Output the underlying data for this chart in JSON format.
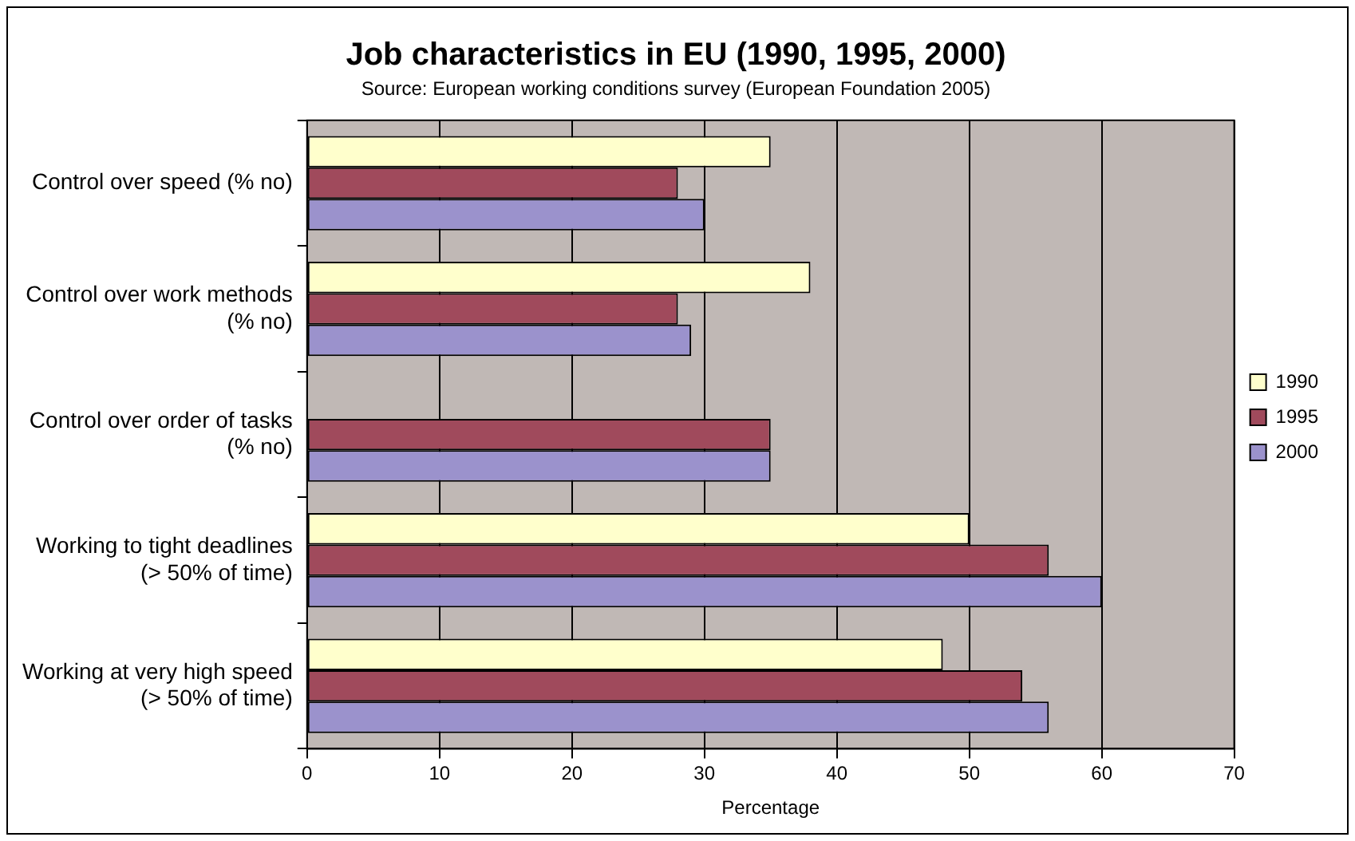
{
  "chart_data": {
    "type": "bar",
    "orientation": "horizontal",
    "title": "Job characteristics in EU (1990, 1995, 2000)",
    "subtitle": "Source: European working conditions survey (European Foundation 2005)",
    "xlabel": "Percentage",
    "categories": [
      "Control over speed (% no)",
      "Control over work methods (% no)",
      "Control over order of tasks (% no)",
      "Working to tight deadlines (> 50% of time)",
      "Working at very high speed (> 50% of time)"
    ],
    "series": [
      {
        "name": "1990",
        "color": "#ffffcc",
        "values": [
          35,
          38,
          null,
          50,
          48
        ]
      },
      {
        "name": "1995",
        "color": "#a04a5c",
        "values": [
          28,
          28,
          35,
          56,
          54
        ]
      },
      {
        "name": "2000",
        "color": "#9b92cc",
        "values": [
          30,
          29,
          35,
          60,
          56
        ]
      }
    ],
    "xlim": [
      0,
      70
    ],
    "xticks": [
      0,
      10,
      20,
      30,
      40,
      50,
      60,
      70
    ],
    "grid": "x",
    "legend": "right"
  }
}
